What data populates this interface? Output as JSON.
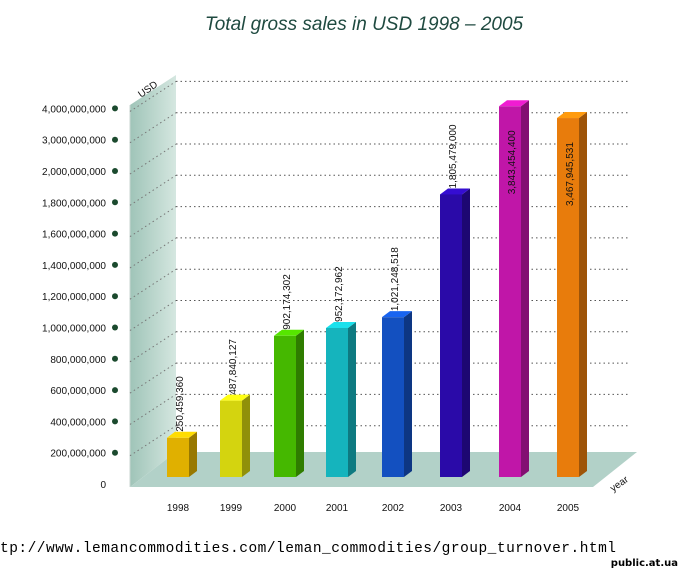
{
  "chart_data": {
    "type": "bar",
    "title": "Total gross sales in USD 1998 – 2005",
    "ylabel": "USD",
    "xlabel": "year",
    "categories": [
      "1998",
      "1999",
      "2000",
      "2001",
      "2002",
      "2003",
      "2004",
      "2005"
    ],
    "values": [
      250459360,
      487840127,
      902174302,
      952172962,
      1021248518,
      1805479000,
      3843454400,
      3467945531
    ],
    "value_labels": [
      "250,459,360",
      "487,840,127",
      "902,174,302",
      "952,172,962",
      "1,021,248,518",
      "1,805,479,000",
      "3,843,454,400",
      "3,467,945,531"
    ],
    "y_tick_labels": [
      "0",
      "200,000,000",
      "400,000,000",
      "600,000,000",
      "800,000,000",
      "1,000,000,000",
      "1,200,000,000",
      "1,400,000,000",
      "1,600,000,000",
      "1,800,000,000",
      "2,000,000,000",
      "3,000,000,000",
      "4,000,000,000"
    ],
    "bar_colors": [
      "#e0b000",
      "#d4d40f",
      "#45b800",
      "#15b4bd",
      "#1350c0",
      "#2a0aa8",
      "#c016a8",
      "#e87c0c"
    ],
    "grid": true,
    "style": "3d"
  },
  "footer": {
    "url": "tp://www.lemancommodities.com/leman_commodities/group_turnover.html",
    "stamp": "public.at.ua"
  }
}
